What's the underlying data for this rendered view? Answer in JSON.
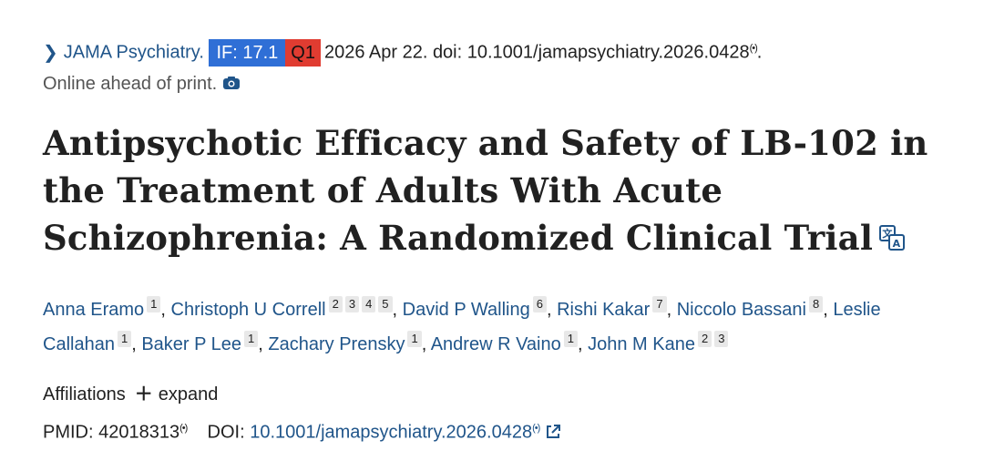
{
  "citation": {
    "journal": "JAMA Psychiatry.",
    "impact_factor": "IF: 17.1",
    "quartile": "Q1",
    "date_doi": "2026 Apr 22. doi: 10.1001/jamapsychiatry.2026.0428",
    "radio_mark": "(•)",
    "period": ".",
    "status": "Online ahead of print.",
    "badge_colors": {
      "if": "#2f6fd6",
      "q": "#e03c31"
    }
  },
  "title": "Antipsychotic Efficacy and Safety of LB-102 in the Treatment of Adults With Acute Schizophrenia: A Randomized Clinical Trial",
  "authors": [
    {
      "name": "Anna Eramo",
      "affs": [
        "1"
      ]
    },
    {
      "name": "Christoph U Correll",
      "affs": [
        "2",
        "3",
        "4",
        "5"
      ]
    },
    {
      "name": "David P Walling",
      "affs": [
        "6"
      ]
    },
    {
      "name": "Rishi Kakar",
      "affs": [
        "7"
      ]
    },
    {
      "name": "Niccolo Bassani",
      "affs": [
        "8"
      ]
    },
    {
      "name": "Leslie Callahan",
      "affs": [
        "1"
      ]
    },
    {
      "name": "Baker P Lee",
      "affs": [
        "1"
      ]
    },
    {
      "name": "Zachary Prensky",
      "affs": [
        "1"
      ]
    },
    {
      "name": "Andrew R Vaino",
      "affs": [
        "1"
      ]
    },
    {
      "name": "John M Kane",
      "affs": [
        "2",
        "3"
      ]
    }
  ],
  "affiliations": {
    "label": "Affiliations",
    "expand": "expand"
  },
  "ids": {
    "pmid_label": "PMID:",
    "pmid": "42018313",
    "doi_label": "DOI:",
    "doi": "10.1001/jamapsychiatry.2026.0428",
    "radio_mark": "(•)"
  },
  "icons": {
    "chevron": "chevron-right-icon",
    "camera": "camera-icon",
    "translate": "translate-icon",
    "radio": "radio-icon",
    "plus": "plus-icon",
    "external": "external-link-icon"
  }
}
